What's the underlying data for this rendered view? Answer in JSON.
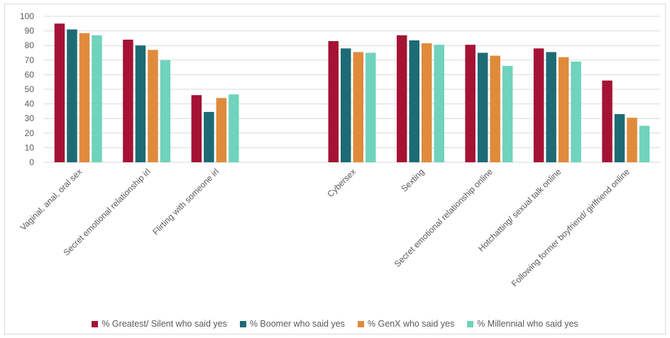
{
  "chart_data": {
    "type": "bar",
    "title": "",
    "xlabel": "",
    "ylabel": "",
    "ylim": [
      0,
      100
    ],
    "yticks": [
      0,
      10,
      20,
      30,
      40,
      50,
      60,
      70,
      80,
      90,
      100
    ],
    "grid": true,
    "legend_position": "bottom",
    "categories": [
      "Vaginal, anal, oral sex",
      "Secret emotional relationship irl",
      "Flirting with someone irl",
      "",
      "Cybersex",
      "Sexting",
      "Secret emotional relationship online",
      "Hotchatting/ sexual talk online",
      "Following former boyfriend/ girlfriend online"
    ],
    "series": [
      {
        "name": "% Greatest/ Silent who said yes",
        "color": "#a51234",
        "values": [
          95,
          84,
          46,
          null,
          83,
          87,
          80.5,
          78,
          56
        ]
      },
      {
        "name": "% Boomer who said yes",
        "color": "#1d6b75",
        "values": [
          91,
          80,
          34.5,
          null,
          78,
          83.5,
          75,
          75.5,
          33
        ]
      },
      {
        "name": "% GenX who said yes",
        "color": "#e08a3c",
        "values": [
          88.5,
          77,
          44,
          null,
          75.5,
          81.5,
          73,
          72,
          30.5
        ]
      },
      {
        "name": "% Millennial who said yes",
        "color": "#6fd3bd",
        "values": [
          87,
          70,
          46.5,
          null,
          75,
          80.5,
          66,
          69,
          25
        ]
      }
    ]
  }
}
